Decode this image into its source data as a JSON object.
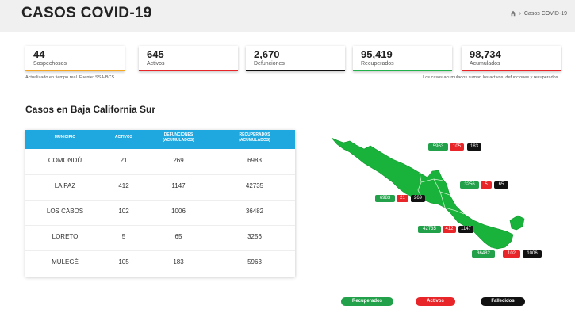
{
  "header": {
    "title": "CASOS COVID-19",
    "breadcrumb_current": "Casos COVID-19"
  },
  "stats": [
    {
      "value": "44",
      "label": "Sospechosos",
      "color": "#f5a623"
    },
    {
      "value": "645",
      "label": "Activos",
      "color": "#e8262a"
    },
    {
      "value": "2,670",
      "label": "Defunciones",
      "color": "#111111"
    },
    {
      "value": "95,419",
      "label": "Recuperados",
      "color": "#22b24c"
    },
    {
      "value": "98,734",
      "label": "Acumulados",
      "color": "#e8262a"
    }
  ],
  "notes": {
    "left": "Actualizado en tiempo real. Fuente: SSA-BCS.",
    "right": "Los casos acumulados suman los activos, defunciones y recuperados."
  },
  "section_title": "Casos en Baja California Sur",
  "table": {
    "headers": {
      "municipio": "MUNICIPIO",
      "activos": "ACTIVOS",
      "defunciones_1": "DEFUNCIONES",
      "defunciones_2": "(ACUMULADOS)",
      "recuperados_1": "RECUPERADOS",
      "recuperados_2": "(ACUMULADOS)"
    },
    "rows": [
      {
        "municipio": "COMONDÚ",
        "activos": "21",
        "defunciones": "269",
        "recuperados": "6983"
      },
      {
        "municipio": "LA PAZ",
        "activos": "412",
        "defunciones": "1147",
        "recuperados": "42735"
      },
      {
        "municipio": "LOS CABOS",
        "activos": "102",
        "defunciones": "1006",
        "recuperados": "36482"
      },
      {
        "municipio": "LORETO",
        "activos": "5",
        "defunciones": "65",
        "recuperados": "3256"
      },
      {
        "municipio": "MULEGÉ",
        "activos": "105",
        "defunciones": "183",
        "recuperados": "5963"
      }
    ]
  },
  "map": {
    "land_color": "#19b33b",
    "mulege": {
      "recuperados": "5963",
      "activos": "105",
      "fallecidos": "183"
    },
    "loreto": {
      "recuperados": "3256",
      "activos": "5",
      "fallecidos": "65"
    },
    "comondu": {
      "recuperados": "6983",
      "activos": "21",
      "fallecidos": "269"
    },
    "la_paz": {
      "recuperados": "42735",
      "activos": "412",
      "fallecidos": "1147"
    },
    "los_cabos": {
      "recuperados": "36482",
      "activos": "102",
      "fallecidos": "1006"
    }
  },
  "legend": {
    "recuperados": "Recuperados",
    "activos": "Activos",
    "fallecidos": "Fallecidos"
  },
  "colors": {
    "recuperados": "#22a14a",
    "activos": "#e8262a",
    "fallecidos": "#111111",
    "table_header": "#1fa7e0"
  }
}
